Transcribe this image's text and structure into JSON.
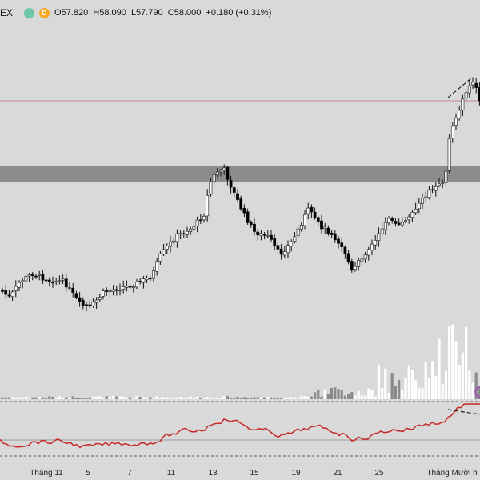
{
  "header": {
    "symbol": "EX",
    "badge_a": "●",
    "badge_b": "D",
    "open": "O57.820",
    "high": "H58.090",
    "low": "L57.790",
    "close": "C58.000",
    "change": "+0.180 (+0.31%)"
  },
  "colors": {
    "background": "#d9d9d9",
    "candle_up_fill": "#ffffff",
    "candle_down_fill": "#000000",
    "zone": "#8c8c8c",
    "rsi_line": "#c62828",
    "price_line": "#c98a8a"
  },
  "chart_data": {
    "type": "candlestick",
    "x_labels": [
      "Tháng 11",
      "5",
      "7",
      "11",
      "13",
      "15",
      "19",
      "21",
      "25",
      "Tháng Mười h"
    ]
  }
}
